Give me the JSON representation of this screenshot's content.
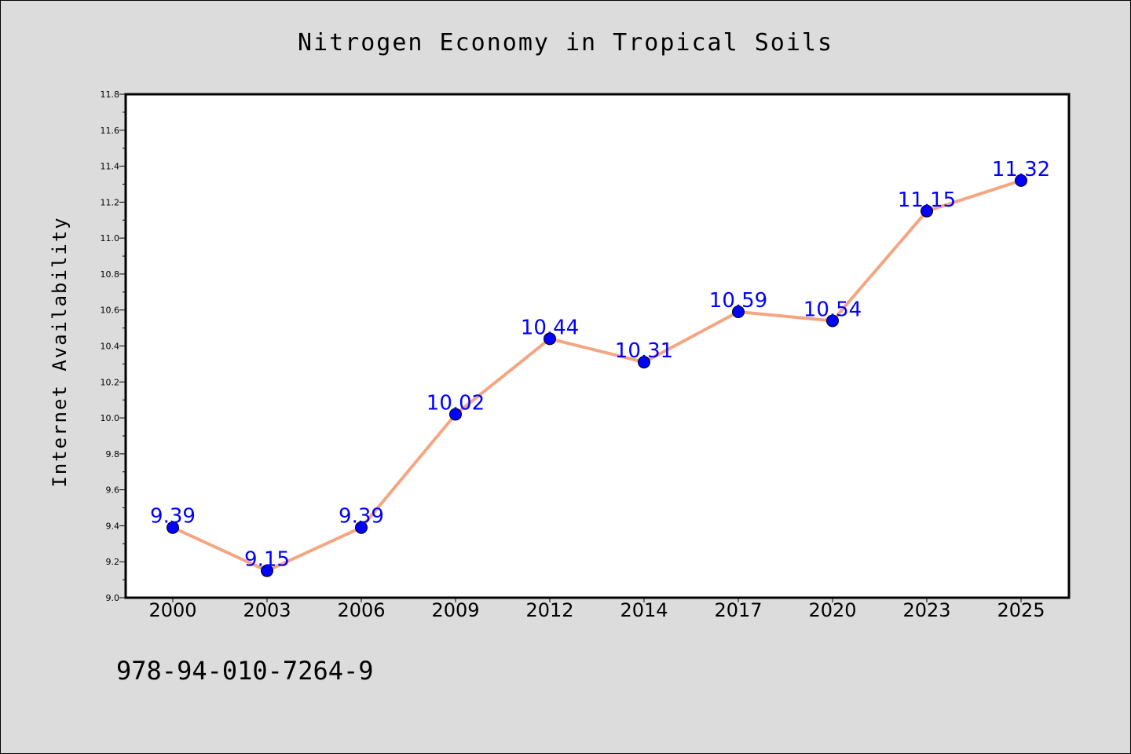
{
  "chart_data": {
    "type": "line",
    "title": "Nitrogen Economy in Tropical Soils",
    "xlabel": "",
    "ylabel": "Internet Availability",
    "categories": [
      "2000",
      "2003",
      "2006",
      "2009",
      "2012",
      "2014",
      "2017",
      "2020",
      "2023",
      "2025"
    ],
    "series": [
      {
        "values": [
          9.39,
          9.15,
          9.39,
          10.02,
          10.44,
          10.31,
          10.59,
          10.54,
          11.15,
          11.32
        ],
        "data_labels": [
          "9.39",
          "9.15",
          "9.39",
          "10.02",
          "10.44",
          "10.31",
          "10.59",
          "10.54",
          "11.15",
          "11.32"
        ]
      }
    ],
    "ylim": [
      9.0,
      11.8
    ],
    "yticks": [
      "9.0",
      "9.2",
      "9.4",
      "9.6",
      "9.8",
      "10.0",
      "10.2",
      "10.4",
      "10.6",
      "10.8",
      "11.0",
      "11.2",
      "11.4",
      "11.6",
      "11.8"
    ],
    "grid": false,
    "legend": "none",
    "colors": {
      "line": "#f4a582",
      "marker": "#0000ff",
      "data_label": "#0000ff",
      "plot_background": "#ffffff",
      "figure_background": "#dcdcdc"
    }
  },
  "footer": {
    "isbn": "978-94-010-7264-9"
  }
}
